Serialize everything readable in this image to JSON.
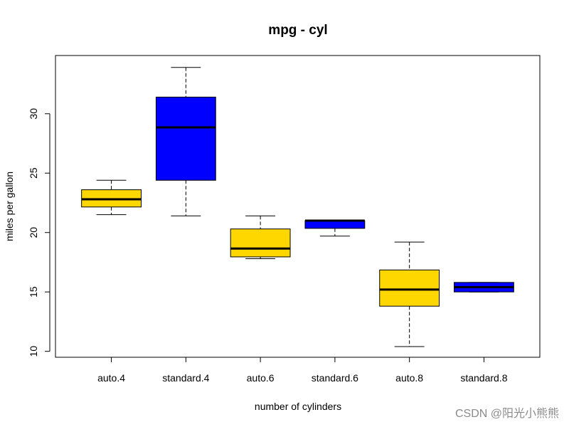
{
  "chart_data": {
    "type": "box",
    "title": "mpg - cyl",
    "xlabel": "number of cylinders",
    "ylabel": "miles per gallon",
    "ylim": [
      9.5,
      34.9
    ],
    "yticks": [
      10,
      15,
      20,
      25,
      30
    ],
    "categories": [
      "auto.4",
      "standard.4",
      "auto.6",
      "standard.6",
      "auto.8",
      "standard.8"
    ],
    "boxes": [
      {
        "label": "auto.4",
        "min": 21.5,
        "q1": 22.15,
        "median": 22.8,
        "q3": 23.6,
        "max": 24.4,
        "color": "#FFD700"
      },
      {
        "label": "standard.4",
        "min": 21.4,
        "q1": 24.4,
        "median": 28.85,
        "q3": 31.4,
        "max": 33.9,
        "color": "#0000FF"
      },
      {
        "label": "auto.6",
        "min": 17.8,
        "q1": 17.95,
        "median": 18.65,
        "q3": 20.3,
        "max": 21.4,
        "color": "#FFD700"
      },
      {
        "label": "standard.6",
        "min": 19.7,
        "q1": 20.35,
        "median": 21.0,
        "q3": 21.0,
        "max": 21.0,
        "color": "#0000FF"
      },
      {
        "label": "auto.8",
        "min": 10.4,
        "q1": 13.8,
        "median": 15.2,
        "q3": 16.85,
        "max": 19.2,
        "color": "#FFD700"
      },
      {
        "label": "standard.8",
        "min": 15.0,
        "q1": 15.0,
        "median": 15.4,
        "q3": 15.8,
        "max": 15.8,
        "color": "#0000FF"
      }
    ],
    "grid": false,
    "legend": "none"
  },
  "watermark": "CSDN @阳光小熊熊"
}
